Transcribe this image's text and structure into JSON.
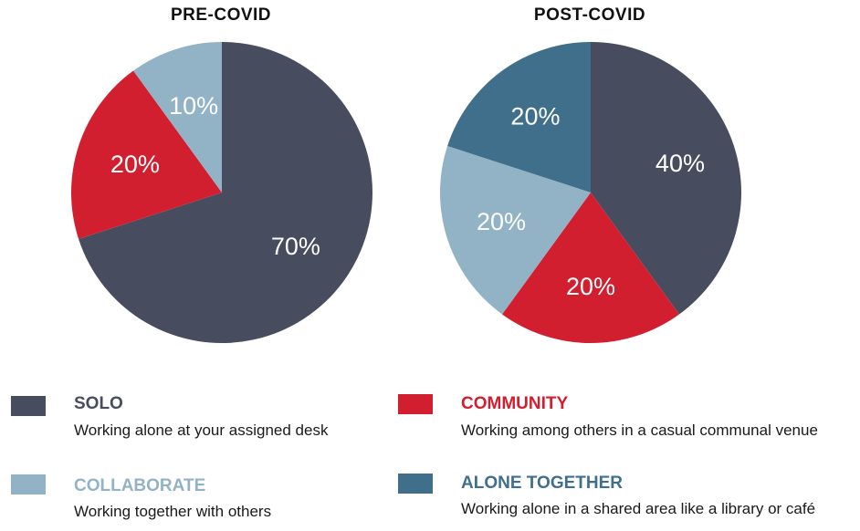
{
  "chart_data": [
    {
      "type": "pie",
      "title": "PRE-COVID",
      "slices": [
        {
          "label": "SOLO",
          "value": 70,
          "display": "70%",
          "color": "#474d5e"
        },
        {
          "label": "COMMUNITY",
          "value": 20,
          "display": "20%",
          "color": "#d21f30"
        },
        {
          "label": "COLLABORATE",
          "value": 10,
          "display": "10%",
          "color": "#92b3c6"
        }
      ]
    },
    {
      "type": "pie",
      "title": "POST-COVID",
      "slices": [
        {
          "label": "SOLO",
          "value": 40,
          "display": "40%",
          "color": "#474d5e"
        },
        {
          "label": "COMMUNITY",
          "value": 20,
          "display": "20%",
          "color": "#d21f30"
        },
        {
          "label": "COLLABORATE",
          "value": 20,
          "display": "20%",
          "color": "#92b3c6"
        },
        {
          "label": "ALONE TOGETHER",
          "value": 20,
          "display": "20%",
          "color": "#406f8c"
        }
      ]
    }
  ],
  "legend": [
    {
      "name": "SOLO",
      "description": "Working alone at your assigned desk",
      "color": "#474d5e"
    },
    {
      "name": "COMMUNITY",
      "description": "Working among others in a casual communal venue",
      "color": "#d21f30"
    },
    {
      "name": "COLLABORATE",
      "description": "Working together with others",
      "color": "#92b3c6"
    },
    {
      "name": "ALONE TOGETHER",
      "description": "Working alone in a shared area like a library or café",
      "color": "#406f8c"
    }
  ]
}
